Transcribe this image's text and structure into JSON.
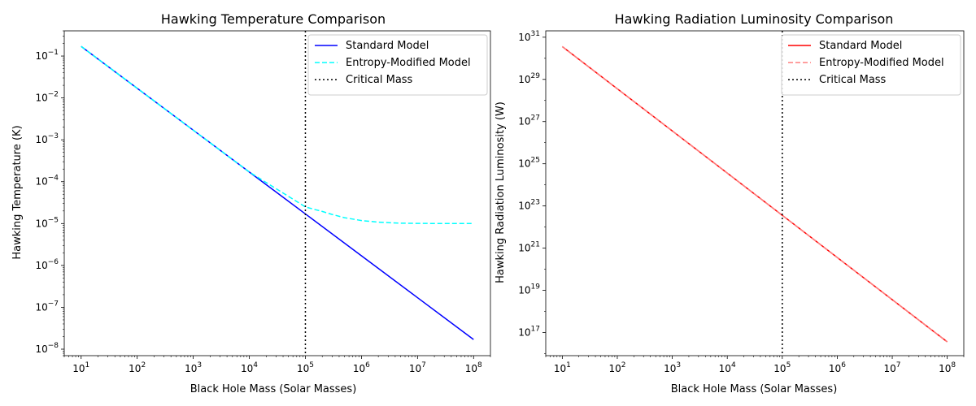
{
  "chart_data": [
    {
      "type": "line",
      "title": "Hawking Temperature Comparison",
      "xlabel": "Black Hole Mass (Solar Masses)",
      "ylabel": "Hawking Temperature (K)",
      "xscale": "log",
      "yscale": "log",
      "xlim": [
        5,
        200000000
      ],
      "ylim": [
        7e-09,
        0.4
      ],
      "xticks": [
        10,
        100,
        1000,
        10000,
        100000,
        1000000,
        10000000,
        100000000
      ],
      "yticks": [
        1e-08,
        1e-07,
        1e-06,
        1e-05,
        0.0001,
        0.001,
        0.01,
        0.1
      ],
      "tick_base": "10",
      "xtick_exponents": [
        "1",
        "2",
        "3",
        "4",
        "5",
        "6",
        "7",
        "8"
      ],
      "ytick_exponents": [
        "−8",
        "−7",
        "−6",
        "−5",
        "−4",
        "−3",
        "−2",
        "−1"
      ],
      "grid": false,
      "legend_position": "top-right",
      "series": [
        {
          "name": "Standard Model",
          "color": "#0000ff",
          "style": "solid",
          "x": [
            10,
            100,
            1000,
            10000,
            100000,
            1000000,
            10000000,
            100000000
          ],
          "y": [
            0.17,
            0.017,
            0.0017,
            0.00017,
            1.7e-05,
            1.7e-06,
            1.7e-07,
            1.7e-08
          ]
        },
        {
          "name": "Entropy-Modified Model",
          "color": "#00ffff",
          "style": "dashed",
          "x": [
            10,
            100,
            1000,
            10000,
            100000,
            150000,
            200000,
            300000,
            500000,
            1000000,
            2000000,
            5000000,
            10000000,
            30000000,
            100000000
          ],
          "y": [
            0.17,
            0.017,
            0.0017,
            0.00017,
            2.5e-05,
            2.15e-05,
            1.95e-05,
            1.65e-05,
            1.38e-05,
            1.18e-05,
            1.08e-05,
            1.02e-05,
            1.01e-05,
            1e-05,
            1e-05
          ]
        }
      ],
      "vline": {
        "name": "Critical Mass",
        "x": 100000,
        "color": "#000000",
        "style": "dotted"
      }
    },
    {
      "type": "line",
      "title": "Hawking Radiation Luminosity Comparison",
      "xlabel": "Black Hole Mass (Solar Masses)",
      "ylabel": "Hawking Radiation Luminosity (W)",
      "xscale": "log",
      "yscale": "log",
      "xlim": [
        5,
        200000000
      ],
      "ylim": [
        8000000000000000.0,
        2e+31
      ],
      "xticks": [
        10,
        100,
        1000,
        10000,
        100000,
        1000000,
        10000000,
        100000000
      ],
      "yticks": [
        1e+17,
        1e+19,
        1e+21,
        1e+23,
        1e+25,
        1e+27,
        1e+29,
        1e+31
      ],
      "tick_base": "10",
      "xtick_exponents": [
        "1",
        "2",
        "3",
        "4",
        "5",
        "6",
        "7",
        "8"
      ],
      "ytick_exponents": [
        "17",
        "19",
        "21",
        "23",
        "25",
        "27",
        "29",
        "31"
      ],
      "grid": false,
      "legend_position": "top-right",
      "series": [
        {
          "name": "Standard Model",
          "color": "#ff0000",
          "style": "solid",
          "x": [
            10,
            100000000
          ],
          "y": [
            3.6e+30,
            3.6e+16
          ]
        },
        {
          "name": "Entropy-Modified Model",
          "color": "#ff7f7f",
          "style": "dashed",
          "x": [
            10,
            100000000
          ],
          "y": [
            3.6e+30,
            3.6e+16
          ]
        }
      ],
      "vline": {
        "name": "Critical Mass",
        "x": 100000,
        "color": "#000000",
        "style": "dotted"
      }
    }
  ]
}
